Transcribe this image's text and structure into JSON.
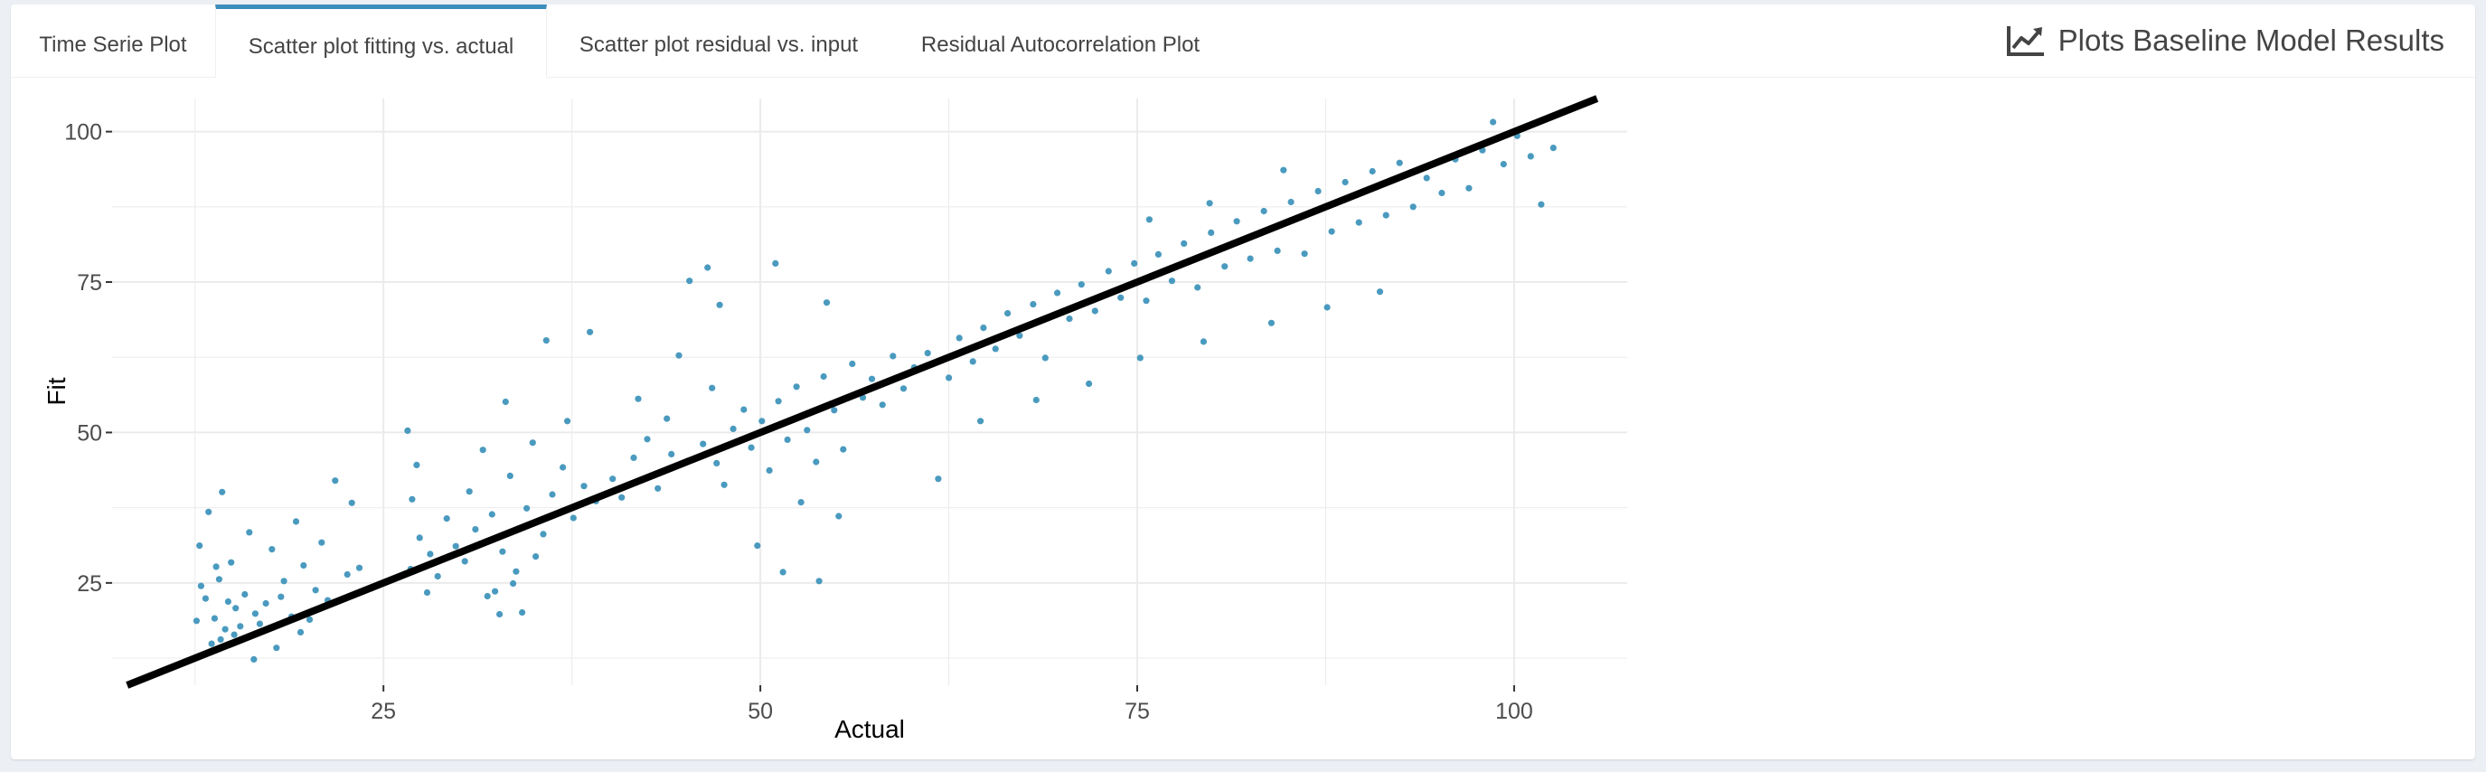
{
  "tabs": [
    {
      "label": "Time Serie Plot",
      "active": false
    },
    {
      "label": "Scatter plot fitting vs. actual",
      "active": true
    },
    {
      "label": "Scatter plot residual vs. input",
      "active": false
    },
    {
      "label": "Residual Autocorrelation Plot",
      "active": false
    }
  ],
  "header": {
    "title": "Plots Baseline Model Results",
    "icon": "line-chart-icon"
  },
  "colors": {
    "point": "#4a9abf",
    "line": "#000000",
    "accent": "#3c8dbc",
    "grid": "#ebebeb"
  },
  "chart_data": {
    "type": "scatter",
    "title": "",
    "xlabel": "Actual",
    "ylabel": "Fit",
    "xlim": [
      7.0,
      107.5
    ],
    "ylim": [
      8.0,
      105.5
    ],
    "x_ticks": [
      25,
      50,
      75,
      100
    ],
    "y_ticks": [
      25,
      50,
      75,
      100
    ],
    "grid": true,
    "legend": "none",
    "reference_line": {
      "label": "y = x",
      "slope": 1,
      "intercept": 0
    },
    "series": [
      {
        "points": [
          [
            13.2,
            22.4
          ],
          [
            13.8,
            19.1
          ],
          [
            14.1,
            25.6
          ],
          [
            14.5,
            17.3
          ],
          [
            12.8,
            31.2
          ],
          [
            15.2,
            20.8
          ],
          [
            13.6,
            14.9
          ],
          [
            14.9,
            28.4
          ],
          [
            12.6,
            18.7
          ],
          [
            13.4,
            36.8
          ],
          [
            15.8,
            23.1
          ],
          [
            14.2,
            15.6
          ],
          [
            16.5,
            19.9
          ],
          [
            13.9,
            27.7
          ],
          [
            15.1,
            16.4
          ],
          [
            14.7,
            21.9
          ],
          [
            12.9,
            24.5
          ],
          [
            16.1,
            33.4
          ],
          [
            15.5,
            17.8
          ],
          [
            14.3,
            40.1
          ],
          [
            17.2,
            21.6
          ],
          [
            18.4,
            25.3
          ],
          [
            16.8,
            18.2
          ],
          [
            19.7,
            27.9
          ],
          [
            18.9,
            19.4
          ],
          [
            20.5,
            23.8
          ],
          [
            17.6,
            30.6
          ],
          [
            21.3,
            22.1
          ],
          [
            19.2,
            35.2
          ],
          [
            22.6,
            26.4
          ],
          [
            20.9,
            31.7
          ],
          [
            21.8,
            42.0
          ],
          [
            22.9,
            38.3
          ],
          [
            23.4,
            27.5
          ],
          [
            24.2,
            24.1
          ],
          [
            19.5,
            16.8
          ],
          [
            17.9,
            14.2
          ],
          [
            16.4,
            12.3
          ],
          [
            18.2,
            22.7
          ],
          [
            20.1,
            18.9
          ],
          [
            26.8,
            27.3
          ],
          [
            27.4,
            32.5
          ],
          [
            26.9,
            38.9
          ],
          [
            28.1,
            29.8
          ],
          [
            27.2,
            44.6
          ],
          [
            26.6,
            50.3
          ],
          [
            28.6,
            26.1
          ],
          [
            29.2,
            35.7
          ],
          [
            27.9,
            23.4
          ],
          [
            29.8,
            31.1
          ],
          [
            30.4,
            28.6
          ],
          [
            31.1,
            33.9
          ],
          [
            30.7,
            40.2
          ],
          [
            32.2,
            36.4
          ],
          [
            31.6,
            47.1
          ],
          [
            32.9,
            30.2
          ],
          [
            33.4,
            42.8
          ],
          [
            33.8,
            26.9
          ],
          [
            32.4,
            23.6
          ],
          [
            34.5,
            37.4
          ],
          [
            33.1,
            55.1
          ],
          [
            34.9,
            48.3
          ],
          [
            35.6,
            33.1
          ],
          [
            36.2,
            39.7
          ],
          [
            35.1,
            29.4
          ],
          [
            36.9,
            44.2
          ],
          [
            37.6,
            35.8
          ],
          [
            38.3,
            41.1
          ],
          [
            37.2,
            51.9
          ],
          [
            39.1,
            38.6
          ],
          [
            34.2,
            20.1
          ],
          [
            33.6,
            24.9
          ],
          [
            32.7,
            19.8
          ],
          [
            31.9,
            22.8
          ],
          [
            35.8,
            65.3
          ],
          [
            38.7,
            66.7
          ],
          [
            40.2,
            42.3
          ],
          [
            41.6,
            45.8
          ],
          [
            40.8,
            39.2
          ],
          [
            42.5,
            48.9
          ],
          [
            41.9,
            55.6
          ],
          [
            43.2,
            40.7
          ],
          [
            44.1,
            46.4
          ],
          [
            43.8,
            52.3
          ],
          [
            45.3,
            75.2
          ],
          [
            44.6,
            62.8
          ],
          [
            46.2,
            48.1
          ],
          [
            47.1,
            44.9
          ],
          [
            46.8,
            57.4
          ],
          [
            48.2,
            50.6
          ],
          [
            47.6,
            41.3
          ],
          [
            48.9,
            53.8
          ],
          [
            49.4,
            47.5
          ],
          [
            50.1,
            51.9
          ],
          [
            50.6,
            43.7
          ],
          [
            51.2,
            55.2
          ],
          [
            51.8,
            48.8
          ],
          [
            52.4,
            57.6
          ],
          [
            53.1,
            50.4
          ],
          [
            53.7,
            45.1
          ],
          [
            54.2,
            59.3
          ],
          [
            54.9,
            53.7
          ],
          [
            55.5,
            47.2
          ],
          [
            56.1,
            61.4
          ],
          [
            56.8,
            55.8
          ],
          [
            57.4,
            58.9
          ],
          [
            58.1,
            54.6
          ],
          [
            58.8,
            62.7
          ],
          [
            59.5,
            57.3
          ],
          [
            60.2,
            60.8
          ],
          [
            49.8,
            31.2
          ],
          [
            51.5,
            26.8
          ],
          [
            52.7,
            38.4
          ],
          [
            53.9,
            25.3
          ],
          [
            55.2,
            36.1
          ],
          [
            47.3,
            71.2
          ],
          [
            51.0,
            78.1
          ],
          [
            46.5,
            77.4
          ],
          [
            54.4,
            71.6
          ],
          [
            61.8,
            42.3
          ],
          [
            61.1,
            63.2
          ],
          [
            62.5,
            59.1
          ],
          [
            63.2,
            65.7
          ],
          [
            64.1,
            61.8
          ],
          [
            64.8,
            67.4
          ],
          [
            65.6,
            63.9
          ],
          [
            66.4,
            69.8
          ],
          [
            67.2,
            66.1
          ],
          [
            68.1,
            71.3
          ],
          [
            68.9,
            62.4
          ],
          [
            69.7,
            73.2
          ],
          [
            70.5,
            68.9
          ],
          [
            71.3,
            74.6
          ],
          [
            72.2,
            70.2
          ],
          [
            73.1,
            76.8
          ],
          [
            73.9,
            72.4
          ],
          [
            74.8,
            78.1
          ],
          [
            75.6,
            71.9
          ],
          [
            76.4,
            79.6
          ],
          [
            77.3,
            75.2
          ],
          [
            78.1,
            81.4
          ],
          [
            79.0,
            74.1
          ],
          [
            79.9,
            83.2
          ],
          [
            80.8,
            77.6
          ],
          [
            81.6,
            85.1
          ],
          [
            82.5,
            78.9
          ],
          [
            83.4,
            86.8
          ],
          [
            84.3,
            80.2
          ],
          [
            85.2,
            88.3
          ],
          [
            86.1,
            79.7
          ],
          [
            87.0,
            90.1
          ],
          [
            87.9,
            83.4
          ],
          [
            88.8,
            91.6
          ],
          [
            89.7,
            84.9
          ],
          [
            90.6,
            93.4
          ],
          [
            91.5,
            86.1
          ],
          [
            92.4,
            94.8
          ],
          [
            93.3,
            87.5
          ],
          [
            94.2,
            92.3
          ],
          [
            95.2,
            89.8
          ],
          [
            96.1,
            95.4
          ],
          [
            97.0,
            90.6
          ],
          [
            97.9,
            96.9
          ],
          [
            98.6,
            101.6
          ],
          [
            99.3,
            94.6
          ],
          [
            100.2,
            99.3
          ],
          [
            101.1,
            95.9
          ],
          [
            101.8,
            87.9
          ],
          [
            102.6,
            97.3
          ],
          [
            91.1,
            73.4
          ],
          [
            87.6,
            70.8
          ],
          [
            83.9,
            68.2
          ],
          [
            79.4,
            65.1
          ],
          [
            75.2,
            62.4
          ],
          [
            71.8,
            58.1
          ],
          [
            68.3,
            55.4
          ],
          [
            64.6,
            51.9
          ],
          [
            84.7,
            93.6
          ],
          [
            79.8,
            88.1
          ],
          [
            75.8,
            85.4
          ]
        ]
      }
    ]
  }
}
